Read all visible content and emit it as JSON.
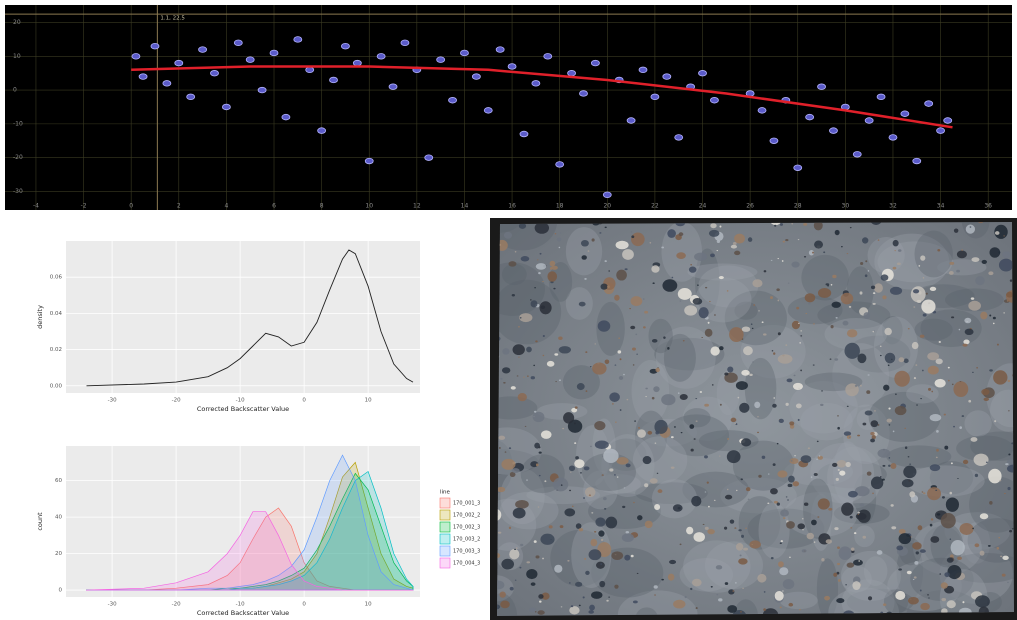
{
  "chart_data": [
    {
      "type": "scatter",
      "annotation": "1.1, 22.5",
      "crosshair": {
        "x": 1.1,
        "y": 22.5
      },
      "xlim": [
        -5.3,
        37
      ],
      "ylim": [
        -35.5,
        25.2
      ],
      "xticks": [
        -4,
        -2,
        0,
        2,
        4,
        6,
        8,
        10,
        12,
        14,
        16,
        18,
        20,
        22,
        24,
        26,
        28,
        30,
        32,
        34,
        36
      ],
      "yticks": [
        -30,
        -20,
        -10,
        0,
        10,
        20
      ],
      "grid": true,
      "color": "#5b5bc9",
      "x": [
        0.2,
        0.5,
        1,
        1.5,
        2,
        2.5,
        3,
        3.5,
        4,
        4.5,
        5,
        5.5,
        6,
        6.5,
        7,
        7.5,
        8,
        8.5,
        9,
        9.5,
        10,
        10.5,
        11,
        11.5,
        12,
        12.5,
        13,
        13.5,
        14,
        14.5,
        15,
        15.5,
        16,
        16.5,
        17,
        17.5,
        18,
        18.5,
        19,
        19.5,
        20,
        20.5,
        21,
        21.5,
        22,
        22.5,
        23,
        23.5,
        24,
        24.5,
        26,
        26.5,
        27,
        27.5,
        28,
        28.5,
        29,
        29.5,
        30,
        30.5,
        31,
        31.5,
        32,
        32.5,
        33,
        33.5,
        34,
        34.3
      ],
      "y": [
        10,
        4,
        13,
        2,
        8,
        -2,
        12,
        5,
        -5,
        14,
        9,
        0,
        11,
        -8,
        15,
        6,
        -12,
        3,
        13,
        8,
        -21,
        10,
        1,
        14,
        6,
        -20,
        9,
        -3,
        11,
        4,
        -6,
        12,
        7,
        -13,
        2,
        10,
        -22,
        5,
        -1,
        8,
        -31,
        3,
        -9,
        6,
        -2,
        4,
        -14,
        1,
        5,
        -3,
        -1,
        -6,
        -15,
        -3,
        -23,
        -8,
        1,
        -12,
        -5,
        -19,
        -9,
        -2,
        -14,
        -7,
        -21,
        -4,
        -12,
        -9
      ],
      "trend": {
        "color": "#e0202a",
        "x": [
          0,
          5,
          10,
          15,
          20,
          25,
          30,
          34.5
        ],
        "y": [
          6,
          7,
          7,
          6,
          3,
          -1,
          -6,
          -11
        ]
      }
    },
    {
      "type": "line",
      "x_label": "Corrected Backscatter Value",
      "y_label": "density",
      "xlim": [
        -37.2,
        18.1
      ],
      "ylim": [
        -0.004,
        0.08
      ],
      "xticks": [
        -30,
        -20,
        -10,
        0,
        10
      ],
      "yticks": [
        {
          "value": 0,
          "label": "0.00"
        },
        {
          "value": 0.02,
          "label": "0.02"
        },
        {
          "value": 0.04,
          "label": "0.04"
        },
        {
          "value": 0.06,
          "label": "0.06"
        }
      ],
      "grid": true,
      "color": "#222222",
      "x": [
        -34,
        -25,
        -20,
        -15,
        -12,
        -10,
        -8,
        -6,
        -4,
        -2,
        0,
        2,
        4,
        6,
        7,
        8,
        10,
        12,
        14,
        16,
        17
      ],
      "values": [
        0,
        0.001,
        0.002,
        0.005,
        0.01,
        0.015,
        0.022,
        0.029,
        0.027,
        0.022,
        0.024,
        0.035,
        0.053,
        0.07,
        0.075,
        0.073,
        0.055,
        0.03,
        0.012,
        0.004,
        0.002
      ]
    },
    {
      "type": "area",
      "x_label": "Corrected Backscatter Value",
      "y_label": "count",
      "legend_title": "line",
      "xlim": [
        -37.2,
        18.1
      ],
      "ylim": [
        -3.8,
        79
      ],
      "xticks": [
        -30,
        -20,
        -10,
        0,
        10
      ],
      "yticks": [
        0,
        20,
        40,
        60
      ],
      "grid": true,
      "x": [
        -34,
        -25,
        -20,
        -15,
        -12,
        -10,
        -8,
        -6,
        -4,
        -2,
        0,
        2,
        4,
        6,
        8,
        10,
        12,
        14,
        16,
        17
      ],
      "series": [
        {
          "name": "170_001_3",
          "color": "#F8766D",
          "values": [
            0,
            0,
            1,
            3,
            8,
            15,
            28,
            40,
            45,
            35,
            15,
            5,
            2,
            1,
            0,
            0,
            0,
            0,
            0,
            0
          ]
        },
        {
          "name": "170_002_2",
          "color": "#B79F00",
          "values": [
            0,
            0,
            0,
            0,
            0,
            1,
            1,
            2,
            4,
            6,
            10,
            20,
            40,
            62,
            70,
            45,
            20,
            6,
            2,
            1
          ]
        },
        {
          "name": "170_002_3",
          "color": "#00BA38",
          "values": [
            0,
            0,
            0,
            0,
            1,
            1,
            2,
            3,
            5,
            8,
            12,
            22,
            35,
            50,
            64,
            55,
            35,
            15,
            5,
            2
          ]
        },
        {
          "name": "170_003_2",
          "color": "#00BFC4",
          "values": [
            0,
            0,
            0,
            0,
            0,
            1,
            1,
            2,
            3,
            5,
            8,
            15,
            28,
            45,
            60,
            65,
            45,
            20,
            6,
            2
          ]
        },
        {
          "name": "170_003_3",
          "color": "#619CFF",
          "values": [
            0,
            0,
            0,
            1,
            1,
            2,
            3,
            5,
            8,
            13,
            22,
            40,
            60,
            74,
            60,
            30,
            10,
            3,
            1,
            0
          ]
        },
        {
          "name": "170_004_3",
          "color": "#F564E3",
          "values": [
            0,
            1,
            4,
            10,
            20,
            30,
            43,
            43,
            30,
            14,
            5,
            2,
            1,
            0,
            0,
            0,
            0,
            0,
            0,
            0
          ]
        }
      ]
    }
  ]
}
